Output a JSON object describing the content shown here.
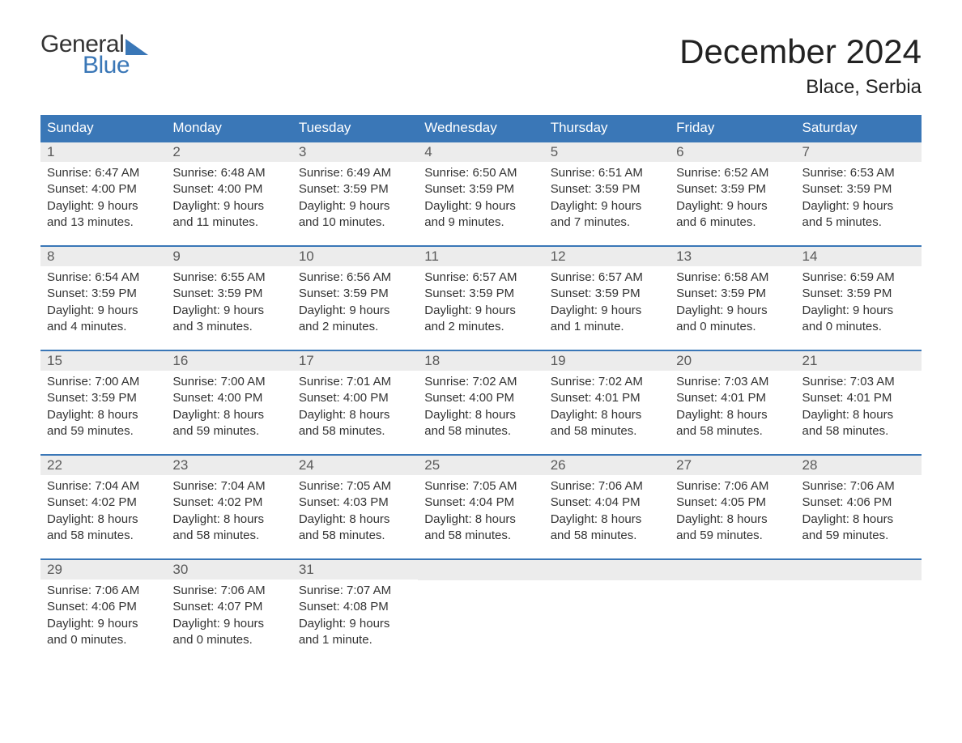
{
  "logo": {
    "word1": "General",
    "word2": "Blue"
  },
  "title": "December 2024",
  "location": "Blace, Serbia",
  "colors": {
    "header_bg": "#3a77b7",
    "daynum_bg": "#ececec",
    "text": "#333333",
    "title_text": "#222222",
    "logo_blue": "#3a77b7"
  },
  "day_headers": [
    "Sunday",
    "Monday",
    "Tuesday",
    "Wednesday",
    "Thursday",
    "Friday",
    "Saturday"
  ],
  "weeks": [
    [
      {
        "n": "1",
        "sr": "Sunrise: 6:47 AM",
        "ss": "Sunset: 4:00 PM",
        "d1": "Daylight: 9 hours",
        "d2": "and 13 minutes."
      },
      {
        "n": "2",
        "sr": "Sunrise: 6:48 AM",
        "ss": "Sunset: 4:00 PM",
        "d1": "Daylight: 9 hours",
        "d2": "and 11 minutes."
      },
      {
        "n": "3",
        "sr": "Sunrise: 6:49 AM",
        "ss": "Sunset: 3:59 PM",
        "d1": "Daylight: 9 hours",
        "d2": "and 10 minutes."
      },
      {
        "n": "4",
        "sr": "Sunrise: 6:50 AM",
        "ss": "Sunset: 3:59 PM",
        "d1": "Daylight: 9 hours",
        "d2": "and 9 minutes."
      },
      {
        "n": "5",
        "sr": "Sunrise: 6:51 AM",
        "ss": "Sunset: 3:59 PM",
        "d1": "Daylight: 9 hours",
        "d2": "and 7 minutes."
      },
      {
        "n": "6",
        "sr": "Sunrise: 6:52 AM",
        "ss": "Sunset: 3:59 PM",
        "d1": "Daylight: 9 hours",
        "d2": "and 6 minutes."
      },
      {
        "n": "7",
        "sr": "Sunrise: 6:53 AM",
        "ss": "Sunset: 3:59 PM",
        "d1": "Daylight: 9 hours",
        "d2": "and 5 minutes."
      }
    ],
    [
      {
        "n": "8",
        "sr": "Sunrise: 6:54 AM",
        "ss": "Sunset: 3:59 PM",
        "d1": "Daylight: 9 hours",
        "d2": "and 4 minutes."
      },
      {
        "n": "9",
        "sr": "Sunrise: 6:55 AM",
        "ss": "Sunset: 3:59 PM",
        "d1": "Daylight: 9 hours",
        "d2": "and 3 minutes."
      },
      {
        "n": "10",
        "sr": "Sunrise: 6:56 AM",
        "ss": "Sunset: 3:59 PM",
        "d1": "Daylight: 9 hours",
        "d2": "and 2 minutes."
      },
      {
        "n": "11",
        "sr": "Sunrise: 6:57 AM",
        "ss": "Sunset: 3:59 PM",
        "d1": "Daylight: 9 hours",
        "d2": "and 2 minutes."
      },
      {
        "n": "12",
        "sr": "Sunrise: 6:57 AM",
        "ss": "Sunset: 3:59 PM",
        "d1": "Daylight: 9 hours",
        "d2": "and 1 minute."
      },
      {
        "n": "13",
        "sr": "Sunrise: 6:58 AM",
        "ss": "Sunset: 3:59 PM",
        "d1": "Daylight: 9 hours",
        "d2": "and 0 minutes."
      },
      {
        "n": "14",
        "sr": "Sunrise: 6:59 AM",
        "ss": "Sunset: 3:59 PM",
        "d1": "Daylight: 9 hours",
        "d2": "and 0 minutes."
      }
    ],
    [
      {
        "n": "15",
        "sr": "Sunrise: 7:00 AM",
        "ss": "Sunset: 3:59 PM",
        "d1": "Daylight: 8 hours",
        "d2": "and 59 minutes."
      },
      {
        "n": "16",
        "sr": "Sunrise: 7:00 AM",
        "ss": "Sunset: 4:00 PM",
        "d1": "Daylight: 8 hours",
        "d2": "and 59 minutes."
      },
      {
        "n": "17",
        "sr": "Sunrise: 7:01 AM",
        "ss": "Sunset: 4:00 PM",
        "d1": "Daylight: 8 hours",
        "d2": "and 58 minutes."
      },
      {
        "n": "18",
        "sr": "Sunrise: 7:02 AM",
        "ss": "Sunset: 4:00 PM",
        "d1": "Daylight: 8 hours",
        "d2": "and 58 minutes."
      },
      {
        "n": "19",
        "sr": "Sunrise: 7:02 AM",
        "ss": "Sunset: 4:01 PM",
        "d1": "Daylight: 8 hours",
        "d2": "and 58 minutes."
      },
      {
        "n": "20",
        "sr": "Sunrise: 7:03 AM",
        "ss": "Sunset: 4:01 PM",
        "d1": "Daylight: 8 hours",
        "d2": "and 58 minutes."
      },
      {
        "n": "21",
        "sr": "Sunrise: 7:03 AM",
        "ss": "Sunset: 4:01 PM",
        "d1": "Daylight: 8 hours",
        "d2": "and 58 minutes."
      }
    ],
    [
      {
        "n": "22",
        "sr": "Sunrise: 7:04 AM",
        "ss": "Sunset: 4:02 PM",
        "d1": "Daylight: 8 hours",
        "d2": "and 58 minutes."
      },
      {
        "n": "23",
        "sr": "Sunrise: 7:04 AM",
        "ss": "Sunset: 4:02 PM",
        "d1": "Daylight: 8 hours",
        "d2": "and 58 minutes."
      },
      {
        "n": "24",
        "sr": "Sunrise: 7:05 AM",
        "ss": "Sunset: 4:03 PM",
        "d1": "Daylight: 8 hours",
        "d2": "and 58 minutes."
      },
      {
        "n": "25",
        "sr": "Sunrise: 7:05 AM",
        "ss": "Sunset: 4:04 PM",
        "d1": "Daylight: 8 hours",
        "d2": "and 58 minutes."
      },
      {
        "n": "26",
        "sr": "Sunrise: 7:06 AM",
        "ss": "Sunset: 4:04 PM",
        "d1": "Daylight: 8 hours",
        "d2": "and 58 minutes."
      },
      {
        "n": "27",
        "sr": "Sunrise: 7:06 AM",
        "ss": "Sunset: 4:05 PM",
        "d1": "Daylight: 8 hours",
        "d2": "and 59 minutes."
      },
      {
        "n": "28",
        "sr": "Sunrise: 7:06 AM",
        "ss": "Sunset: 4:06 PM",
        "d1": "Daylight: 8 hours",
        "d2": "and 59 minutes."
      }
    ],
    [
      {
        "n": "29",
        "sr": "Sunrise: 7:06 AM",
        "ss": "Sunset: 4:06 PM",
        "d1": "Daylight: 9 hours",
        "d2": "and 0 minutes."
      },
      {
        "n": "30",
        "sr": "Sunrise: 7:06 AM",
        "ss": "Sunset: 4:07 PM",
        "d1": "Daylight: 9 hours",
        "d2": "and 0 minutes."
      },
      {
        "n": "31",
        "sr": "Sunrise: 7:07 AM",
        "ss": "Sunset: 4:08 PM",
        "d1": "Daylight: 9 hours",
        "d2": "and 1 minute."
      },
      null,
      null,
      null,
      null
    ]
  ]
}
